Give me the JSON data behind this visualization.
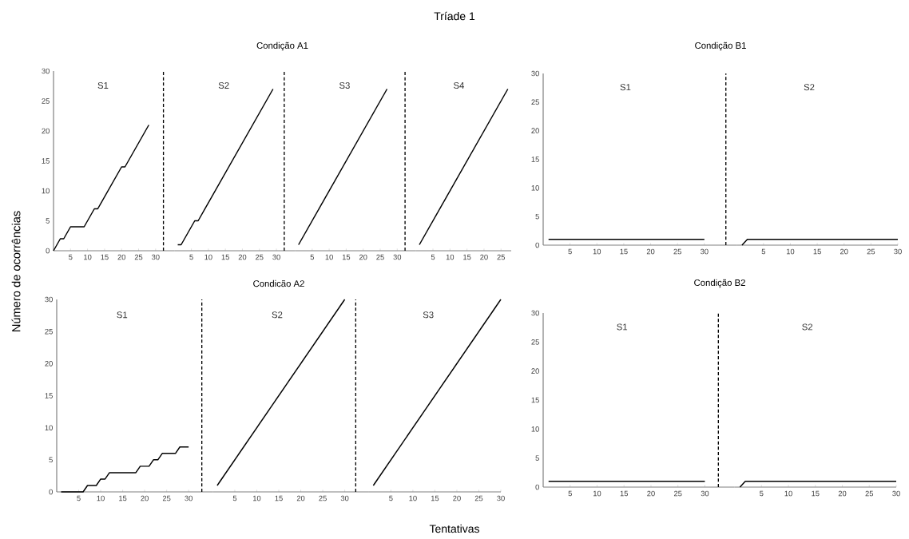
{
  "chart_data": [
    {
      "type": "other",
      "title": "Tríade 1",
      "xlabel": "Tentativas",
      "ylabel": "Número de ocorrências",
      "annotations": [
        "Condição A1",
        "Condição B1",
        "Condicão A2",
        "Condição B2"
      ]
    },
    {
      "type": "line",
      "annotations": [
        "S1"
      ],
      "xlim": [
        0,
        35.5
      ],
      "ylim": [
        0,
        30
      ],
      "xticks": [
        5,
        10,
        15,
        20,
        25,
        30
      ],
      "yticks": [
        0,
        5,
        10,
        15,
        20,
        25,
        30
      ],
      "color": "#000000",
      "x": [
        0,
        2,
        3,
        5,
        9,
        12,
        13,
        20,
        21,
        28
      ],
      "values": [
        0,
        2,
        2,
        4,
        4,
        7,
        7,
        14,
        14,
        21
      ],
      "ref_lines": [
        {
          "axis": "x",
          "value": 32.3,
          "line_style": "dashed"
        }
      ]
    },
    {
      "type": "line",
      "annotations": [
        "S2"
      ],
      "tick_labels": "x",
      "xlim": [
        0,
        35.5
      ],
      "ylim": [
        0,
        30
      ],
      "xticks": [
        5,
        10,
        15,
        20,
        25,
        30
      ],
      "color": "#000000",
      "x": [
        1,
        2,
        6,
        7,
        29
      ],
      "values": [
        1,
        1,
        5,
        5,
        27
      ],
      "ref_lines": [
        {
          "axis": "x",
          "value": 32.3,
          "line_style": "dashed"
        }
      ]
    },
    {
      "type": "line",
      "annotations": [
        "S3"
      ],
      "tick_labels": "x",
      "xlim": [
        0,
        35.5
      ],
      "ylim": [
        0,
        30
      ],
      "xticks": [
        5,
        10,
        15,
        20,
        25,
        30
      ],
      "color": "#000000",
      "x": [
        1,
        27
      ],
      "values": [
        1,
        27
      ],
      "ref_lines": [
        {
          "axis": "x",
          "value": 32.3,
          "line_style": "dashed"
        }
      ]
    },
    {
      "type": "line",
      "annotations": [
        "S4"
      ],
      "tick_labels": "x",
      "xlim": [
        0,
        28
      ],
      "ylim": [
        0,
        30
      ],
      "xticks": [
        5,
        10,
        15,
        20,
        25
      ],
      "color": "#000000",
      "x": [
        1,
        27
      ],
      "values": [
        1,
        27
      ]
    },
    {
      "type": "line",
      "annotations": [
        "S1"
      ],
      "xlim": [
        0,
        36
      ],
      "ylim": [
        0,
        30
      ],
      "xticks": [
        5,
        10,
        15,
        20,
        25,
        30
      ],
      "yticks": [
        0,
        5,
        10,
        15,
        20,
        25,
        30
      ],
      "color": "#000000",
      "x": [
        1,
        30
      ],
      "values": [
        1,
        1
      ],
      "ref_lines": [
        {
          "axis": "x",
          "value": 34,
          "line_style": "dashed"
        }
      ]
    },
    {
      "type": "line",
      "annotations": [
        "S2"
      ],
      "tick_labels": "x",
      "xlim": [
        0,
        30
      ],
      "ylim": [
        0,
        30
      ],
      "xticks": [
        5,
        10,
        15,
        20,
        25,
        30
      ],
      "color": "#000000",
      "x": [
        1,
        2,
        30
      ],
      "values": [
        0,
        1,
        1
      ]
    },
    {
      "type": "line",
      "annotations": [
        "S1"
      ],
      "xlim": [
        0,
        35.5
      ],
      "ylim": [
        0,
        30
      ],
      "xticks": [
        5,
        10,
        15,
        20,
        25,
        30
      ],
      "yticks": [
        0,
        5,
        10,
        15,
        20,
        25,
        30
      ],
      "color": "#000000",
      "x": [
        1,
        6,
        7,
        9,
        10,
        11,
        12,
        18,
        19,
        21,
        22,
        23,
        24,
        27,
        28,
        30
      ],
      "values": [
        0,
        0,
        1,
        1,
        2,
        2,
        3,
        3,
        4,
        4,
        5,
        5,
        6,
        6,
        7,
        7
      ],
      "ref_lines": [
        {
          "axis": "x",
          "value": 33,
          "line_style": "dashed"
        }
      ]
    },
    {
      "type": "line",
      "annotations": [
        "S2"
      ],
      "tick_labels": "x",
      "xlim": [
        0,
        35.5
      ],
      "ylim": [
        0,
        30
      ],
      "xticks": [
        5,
        10,
        15,
        20,
        25,
        30
      ],
      "color": "#000000",
      "x": [
        1,
        30
      ],
      "values": [
        1,
        30
      ],
      "ref_lines": [
        {
          "axis": "x",
          "value": 32.5,
          "line_style": "dashed"
        }
      ]
    },
    {
      "type": "line",
      "annotations": [
        "S3"
      ],
      "tick_labels": "x",
      "xlim": [
        0,
        30
      ],
      "ylim": [
        0,
        30
      ],
      "xticks": [
        5,
        10,
        15,
        20,
        25,
        30
      ],
      "color": "#000000",
      "x": [
        1,
        30
      ],
      "values": [
        1,
        30
      ]
    },
    {
      "type": "line",
      "annotations": [
        "S1"
      ],
      "xlim": [
        0,
        35.5
      ],
      "ylim": [
        0,
        30
      ],
      "xticks": [
        5,
        10,
        15,
        20,
        25,
        30
      ],
      "yticks": [
        0,
        5,
        10,
        15,
        20,
        25,
        30
      ],
      "color": "#000000",
      "x": [
        1,
        30
      ],
      "values": [
        1,
        1
      ],
      "ref_lines": [
        {
          "axis": "x",
          "value": 32.5,
          "line_style": "dashed"
        }
      ]
    },
    {
      "type": "line",
      "annotations": [
        "S2"
      ],
      "tick_labels": "x",
      "xlim": [
        0,
        30
      ],
      "ylim": [
        0,
        30
      ],
      "xticks": [
        5,
        10,
        15,
        20,
        25,
        30
      ],
      "color": "#000000",
      "x": [
        1,
        2,
        30
      ],
      "values": [
        0,
        1,
        1
      ]
    }
  ]
}
